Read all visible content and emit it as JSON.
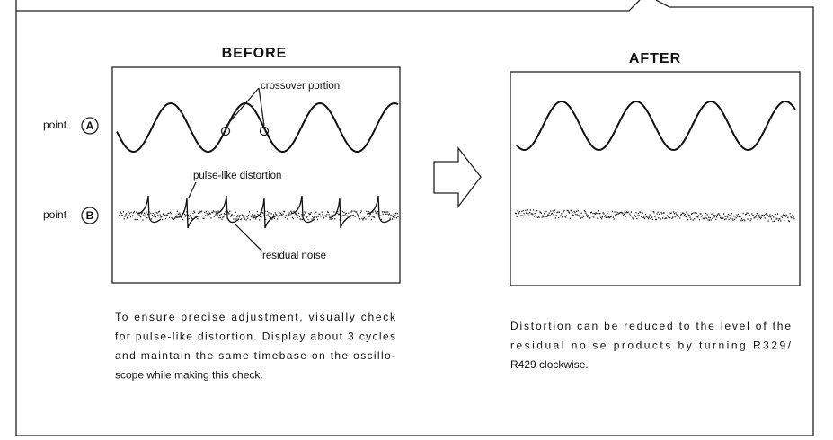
{
  "before": {
    "title": "BEFORE",
    "point_label": "point",
    "point_a": "A",
    "point_b": "B",
    "annotations": [
      "crossover portion",
      "pulse-like distortion",
      "residual noise"
    ],
    "caption": [
      "To ensure precise adjustment, visually check",
      "for pulse-like distortion. Display about 3 cycles",
      "and maintain the same timebase on the oscillo-",
      "scope while making this check."
    ]
  },
  "after": {
    "title": "AFTER",
    "caption": [
      "Distortion can be reduced to the level of the",
      "residual noise products by turning R329/",
      "R429 clockwise."
    ]
  }
}
